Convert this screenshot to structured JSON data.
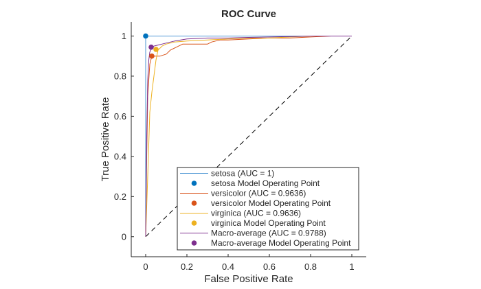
{
  "chart_data": {
    "type": "line",
    "title": "ROC Curve",
    "xlabel": "False Positive Rate",
    "ylabel": "True Positive Rate",
    "xlim": [
      -0.07,
      1.07
    ],
    "ylim": [
      -0.1,
      1.07
    ],
    "xticks": [
      0,
      0.2,
      0.4,
      0.6,
      0.8,
      1
    ],
    "yticks": [
      0,
      0.2,
      0.4,
      0.6,
      0.8,
      1
    ],
    "xtick_labels": [
      "0",
      "0.2",
      "0.4",
      "0.6",
      "0.8",
      "1"
    ],
    "ytick_labels": [
      "0",
      "0.2",
      "0.4",
      "0.6",
      "0.8",
      "1"
    ],
    "grid": false,
    "legend_position": "bottom-right",
    "diagonal": {
      "x": [
        0,
        1
      ],
      "y": [
        0,
        1
      ],
      "style": "dashed",
      "color": "#000000"
    },
    "series": [
      {
        "name": "setosa (AUC = 1)",
        "color": "#4b95d3",
        "x": [
          0,
          0,
          1
        ],
        "y": [
          0,
          1,
          1
        ]
      },
      {
        "name": "versicolor (AUC = 0.9636)",
        "color": "#d95319",
        "x": [
          0,
          0.005,
          0.01,
          0.02,
          0.03,
          0.05,
          0.07,
          0.1,
          0.12,
          0.14,
          0.16,
          0.18,
          0.2,
          0.3,
          0.32,
          0.36,
          0.4,
          0.5,
          0.6,
          0.7,
          0.8,
          0.9,
          1
        ],
        "y": [
          0,
          0.4,
          0.7,
          0.86,
          0.9,
          0.9,
          0.9,
          0.91,
          0.93,
          0.94,
          0.95,
          0.96,
          0.96,
          0.96,
          0.97,
          0.98,
          0.98,
          0.985,
          0.99,
          0.99,
          0.995,
          1,
          1
        ]
      },
      {
        "name": "virginica (AUC = 0.9636)",
        "color": "#edb120",
        "x": [
          0,
          0.01,
          0.02,
          0.03,
          0.04,
          0.05,
          0.06,
          0.08,
          0.1,
          0.14,
          0.2,
          0.3,
          0.4,
          0.5,
          0.6,
          0.7,
          0.8,
          0.9,
          1
        ],
        "y": [
          0,
          0.3,
          0.62,
          0.72,
          0.8,
          0.88,
          0.93,
          0.95,
          0.96,
          0.97,
          0.975,
          0.98,
          0.985,
          0.99,
          0.99,
          0.995,
          1,
          1,
          1
        ],
        "dense": true
      },
      {
        "name": "Macro-average (AUC = 0.9788)",
        "color": "#7e2f8e",
        "x": [
          0,
          0.005,
          0.01,
          0.015,
          0.02,
          0.03,
          0.04,
          0.06,
          0.08,
          0.1,
          0.14,
          0.2,
          0.3,
          0.4,
          0.5,
          0.6,
          0.7,
          0.8,
          0.9,
          1
        ],
        "y": [
          0,
          0.5,
          0.78,
          0.88,
          0.92,
          0.94,
          0.95,
          0.955,
          0.96,
          0.965,
          0.975,
          0.985,
          0.99,
          0.99,
          0.993,
          0.995,
          0.997,
          1,
          1,
          1
        ]
      }
    ],
    "operating_points": [
      {
        "name": "setosa Model Operating Point",
        "color": "#0072bd",
        "x": 0,
        "y": 1
      },
      {
        "name": "versicolor Model Operating Point",
        "color": "#d95319",
        "x": 0.03,
        "y": 0.9
      },
      {
        "name": "virginica Model Operating Point",
        "color": "#edb120",
        "x": 0.05,
        "y": 0.9333
      },
      {
        "name": "Macro-average Model Operating Point",
        "color": "#7e2f8e",
        "x": 0.0267,
        "y": 0.9444
      }
    ],
    "legend_entries": [
      {
        "label": "setosa (AUC = 1)",
        "kind": "line",
        "color": "#4b95d3"
      },
      {
        "label": "setosa Model Operating Point",
        "kind": "marker",
        "color": "#0072bd"
      },
      {
        "label": "versicolor (AUC = 0.9636)",
        "kind": "line",
        "color": "#d95319"
      },
      {
        "label": "versicolor Model Operating Point",
        "kind": "marker",
        "color": "#d95319"
      },
      {
        "label": "virginica (AUC = 0.9636)",
        "kind": "line",
        "color": "#edb120"
      },
      {
        "label": "virginica Model Operating Point",
        "kind": "marker",
        "color": "#edb120"
      },
      {
        "label": "Macro-average (AUC = 0.9788)",
        "kind": "line",
        "color": "#7e2f8e"
      },
      {
        "label": "Macro-average Model Operating Point",
        "kind": "marker",
        "color": "#7e2f8e"
      }
    ]
  }
}
